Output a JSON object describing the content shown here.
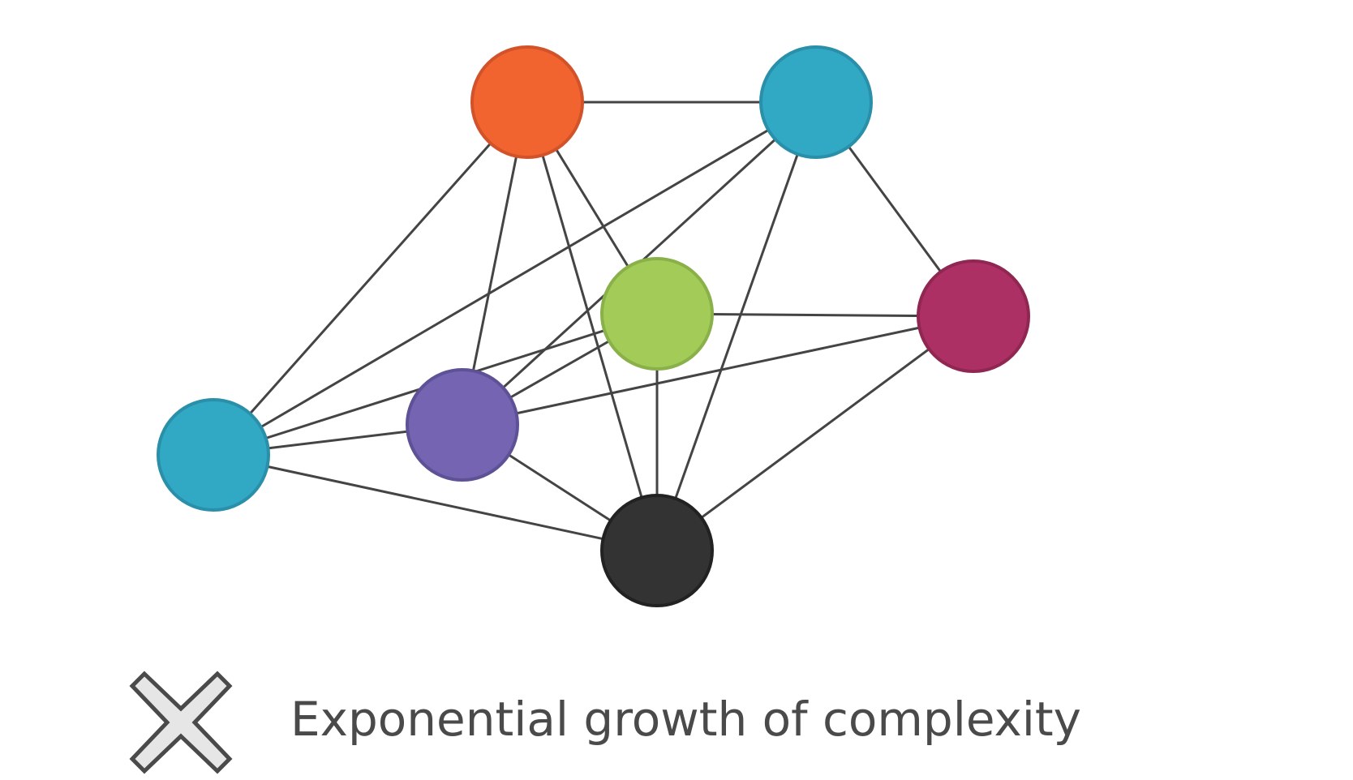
{
  "diagram": {
    "caption": "Exponential growth of complexity",
    "caption_icon": "x-mark-icon",
    "colors": {
      "edge": "#444444",
      "text": "#4a4a4a",
      "x_fill": "#e6e6e6",
      "x_stroke": "#4a4a4a"
    },
    "nodes": [
      {
        "id": "orange-top",
        "fill": "#f1642f",
        "stroke": "#d2522a"
      },
      {
        "id": "teal-top-right",
        "fill": "#31a8c4",
        "stroke": "#2a8fa8"
      },
      {
        "id": "green-center",
        "fill": "#a3cb57",
        "stroke": "#8ab04a"
      },
      {
        "id": "magenta-right",
        "fill": "#ad3064",
        "stroke": "#8f2752"
      },
      {
        "id": "teal-left",
        "fill": "#31a8c4",
        "stroke": "#2a8fa8"
      },
      {
        "id": "purple",
        "fill": "#7464b1",
        "stroke": "#5f5196"
      },
      {
        "id": "black-bottom",
        "fill": "#333333",
        "stroke": "#222222"
      }
    ],
    "edges": [
      [
        "orange-top",
        "teal-top-right"
      ],
      [
        "orange-top",
        "teal-left"
      ],
      [
        "orange-top",
        "purple"
      ],
      [
        "orange-top",
        "black-bottom"
      ],
      [
        "orange-top",
        "green-center"
      ],
      [
        "teal-top-right",
        "teal-left"
      ],
      [
        "teal-top-right",
        "purple"
      ],
      [
        "teal-top-right",
        "black-bottom"
      ],
      [
        "teal-top-right",
        "magenta-right"
      ],
      [
        "green-center",
        "teal-left"
      ],
      [
        "green-center",
        "purple"
      ],
      [
        "green-center",
        "black-bottom"
      ],
      [
        "green-center",
        "magenta-right"
      ],
      [
        "magenta-right",
        "purple"
      ],
      [
        "magenta-right",
        "black-bottom"
      ],
      [
        "teal-left",
        "purple"
      ],
      [
        "teal-left",
        "black-bottom"
      ],
      [
        "purple",
        "black-bottom"
      ]
    ]
  }
}
